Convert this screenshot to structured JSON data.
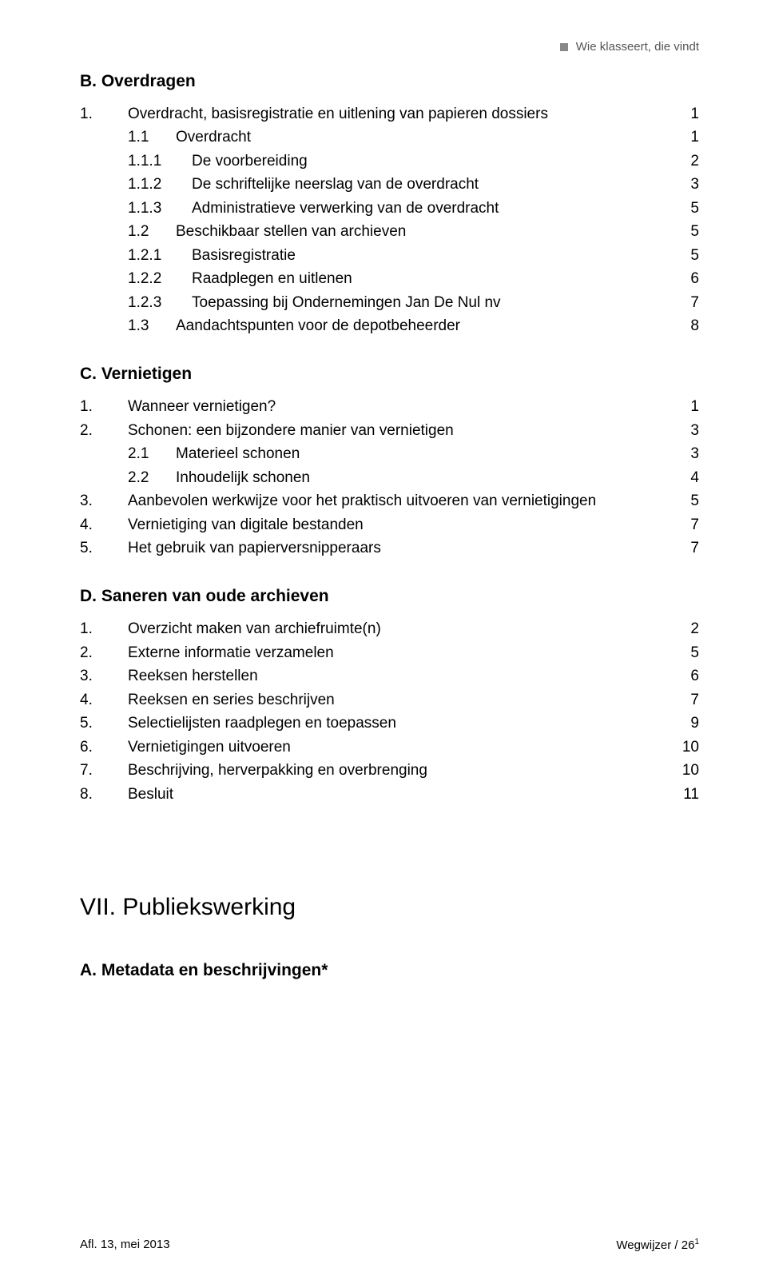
{
  "header": {
    "running_title": "Wie klasseert, die vindt"
  },
  "sections": [
    {
      "heading": "B. Overdragen",
      "items": [
        {
          "level": 1,
          "num": "1.",
          "label": "Overdracht, basisregistratie en uitlening van papieren dossiers",
          "page": "1"
        },
        {
          "level": 2,
          "num": "1.1",
          "label": "Overdracht",
          "page": "1"
        },
        {
          "level": 3,
          "num": "1.1.1",
          "label": "De voorbereiding",
          "page": "2"
        },
        {
          "level": 3,
          "num": "1.1.2",
          "label": "De schriftelijke neerslag van de overdracht",
          "page": "3"
        },
        {
          "level": 3,
          "num": "1.1.3",
          "label": "Administratieve verwerking van de overdracht",
          "page": "5"
        },
        {
          "level": 2,
          "num": "1.2",
          "label": "Beschikbaar stellen van archieven",
          "page": "5"
        },
        {
          "level": 3,
          "num": "1.2.1",
          "label": "Basisregistratie",
          "page": "5"
        },
        {
          "level": 3,
          "num": "1.2.2",
          "label": "Raadplegen en uitlenen",
          "page": "6"
        },
        {
          "level": 3,
          "num": "1.2.3",
          "label": "Toepassing bij Ondernemingen Jan De Nul nv",
          "page": "7"
        },
        {
          "level": 2,
          "num": "1.3",
          "label": "Aandachtspunten voor de depotbeheerder",
          "page": "8"
        }
      ]
    },
    {
      "heading": "C. Vernietigen",
      "items": [
        {
          "level": 1,
          "num": "1.",
          "label": "Wanneer vernietigen?",
          "page": "1"
        },
        {
          "level": 1,
          "num": "2.",
          "label": "Schonen: een bijzondere manier van vernietigen",
          "page": "3"
        },
        {
          "level": 2,
          "num": "2.1",
          "label": "Materieel schonen",
          "page": "3"
        },
        {
          "level": 2,
          "num": "2.2",
          "label": "Inhoudelijk schonen",
          "page": "4"
        },
        {
          "level": 1,
          "num": "3.",
          "label": "Aanbevolen werkwijze voor het praktisch uitvoeren van vernietigingen",
          "page": "5"
        },
        {
          "level": 1,
          "num": "4.",
          "label": "Vernietiging van digitale bestanden",
          "page": "7"
        },
        {
          "level": 1,
          "num": "5.",
          "label": "Het gebruik van papierversnipperaars",
          "page": "7"
        }
      ]
    },
    {
      "heading": "D. Saneren van oude archieven",
      "items": [
        {
          "level": 1,
          "num": "1.",
          "label": "Overzicht maken van archiefruimte(n)",
          "page": "2"
        },
        {
          "level": 1,
          "num": "2.",
          "label": "Externe informatie verzamelen",
          "page": "5"
        },
        {
          "level": 1,
          "num": "3.",
          "label": "Reeksen herstellen",
          "page": "6"
        },
        {
          "level": 1,
          "num": "4.",
          "label": "Reeksen en series beschrijven",
          "page": "7"
        },
        {
          "level": 1,
          "num": "5.",
          "label": "Selectielijsten raadplegen en toepassen",
          "page": "9"
        },
        {
          "level": 1,
          "num": "6.",
          "label": "Vernietigingen uitvoeren",
          "page": "10"
        },
        {
          "level": 1,
          "num": "7.",
          "label": "Beschrijving, herverpakking en overbrenging",
          "page": "10"
        },
        {
          "level": 1,
          "num": "8.",
          "label": "Besluit",
          "page": "11"
        }
      ]
    }
  ],
  "part": {
    "heading": "VII. Publiekswerking",
    "sub": "A. Metadata en beschrijvingen*"
  },
  "footer": {
    "left": "Afl. 13, mei 2013",
    "right_prefix": "Wegwijzer / 26",
    "right_sup": "1"
  }
}
